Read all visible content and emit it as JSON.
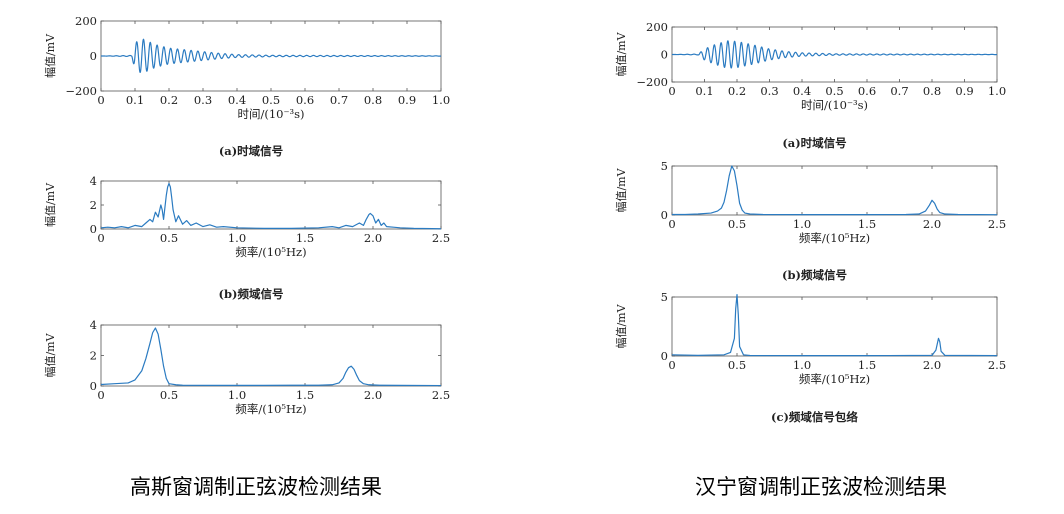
{
  "titles": {
    "left": "高斯窗调制正弦波检测结果",
    "right": "汉宁窗调制正弦波检测结果"
  },
  "chart_data": [
    {
      "id": "L-a",
      "type": "line",
      "column": "left",
      "caption": "(a)时域信号",
      "xlabel": "时间/(10⁻³s)",
      "ylabel": "幅值/mV",
      "xlim": [
        0,
        1.0
      ],
      "ylim": [
        -200,
        200
      ],
      "xticks": [
        0,
        0.1,
        0.2,
        0.3,
        0.4,
        0.5,
        0.6,
        0.7,
        0.8,
        0.9,
        1.0
      ],
      "xtick_labels": [
        "0",
        "0.1",
        "0.2",
        "0.3",
        "0.4",
        "0.5",
        "0.6",
        "0.7",
        "0.8",
        "0.9",
        "1.0"
      ],
      "yticks": [
        -200,
        0,
        200
      ],
      "ytick_labels": [
        "−200",
        "0",
        "200"
      ],
      "grid": false,
      "series": [
        {
          "color": "#2b7bc1",
          "envelope": [
            [
              0,
              0
            ],
            [
              0.09,
              3
            ],
            [
              0.1,
              75
            ],
            [
              0.12,
              100
            ],
            [
              0.16,
              65
            ],
            [
              0.2,
              45
            ],
            [
              0.25,
              35
            ],
            [
              0.3,
              25
            ],
            [
              0.35,
              15
            ],
            [
              0.4,
              8
            ],
            [
              0.5,
              4
            ],
            [
              0.7,
              3
            ],
            [
              1.0,
              1
            ]
          ],
          "freq_per_unit": 50
        }
      ]
    },
    {
      "id": "L-b",
      "type": "line",
      "column": "left",
      "caption": "(b)频域信号",
      "xlabel": "频率/(10⁵Hz)",
      "ylabel": "幅值/mV",
      "xlim": [
        0,
        2.5
      ],
      "ylim": [
        0,
        4
      ],
      "xticks": [
        0,
        0.5,
        1.0,
        1.5,
        2.0,
        2.5
      ],
      "xtick_labels": [
        "0",
        "0.5",
        "1.0",
        "1.5",
        "2.0",
        "2.5"
      ],
      "yticks": [
        0,
        2,
        4
      ],
      "ytick_labels": [
        "0",
        "2",
        "4"
      ],
      "grid": false,
      "series": [
        {
          "color": "#2b7bc1",
          "x": [
            0,
            0.05,
            0.1,
            0.15,
            0.2,
            0.25,
            0.3,
            0.33,
            0.36,
            0.38,
            0.4,
            0.42,
            0.44,
            0.45,
            0.46,
            0.47,
            0.48,
            0.49,
            0.5,
            0.51,
            0.52,
            0.53,
            0.55,
            0.57,
            0.6,
            0.63,
            0.66,
            0.7,
            0.75,
            0.8,
            0.85,
            0.9,
            1.0,
            1.2,
            1.4,
            1.6,
            1.7,
            1.75,
            1.8,
            1.85,
            1.9,
            1.93,
            1.95,
            1.97,
            1.98,
            2.0,
            2.02,
            2.04,
            2.06,
            2.08,
            2.1,
            2.15,
            2.2,
            2.3,
            2.5
          ],
          "y": [
            0.1,
            0.15,
            0.1,
            0.2,
            0.1,
            0.3,
            0.2,
            0.5,
            0.8,
            0.6,
            1.4,
            1.0,
            2.0,
            1.6,
            0.8,
            1.8,
            2.8,
            3.5,
            3.8,
            3.5,
            2.6,
            1.6,
            0.6,
            1.1,
            0.4,
            0.7,
            0.3,
            0.5,
            0.2,
            0.35,
            0.15,
            0.2,
            0.1,
            0.05,
            0.05,
            0.1,
            0.2,
            0.1,
            0.3,
            0.2,
            0.5,
            0.3,
            0.8,
            1.2,
            1.3,
            1.1,
            0.5,
            0.8,
            0.3,
            0.5,
            0.2,
            0.15,
            0.1,
            0.05,
            0.02
          ]
        }
      ]
    },
    {
      "id": "L-c",
      "type": "line",
      "column": "left",
      "caption": "",
      "xlabel": "频率/(10⁵Hz)",
      "ylabel": "幅值/mV",
      "xlim": [
        0,
        2.5
      ],
      "ylim": [
        0,
        4
      ],
      "xticks": [
        0,
        0.5,
        1.0,
        1.5,
        2.0,
        2.5
      ],
      "xtick_labels": [
        "0",
        "0.5",
        "1.0",
        "1.5",
        "2.0",
        "2.5"
      ],
      "yticks": [
        0,
        2,
        4
      ],
      "ytick_labels": [
        "0",
        "2",
        "4"
      ],
      "grid": false,
      "series": [
        {
          "color": "#2b7bc1",
          "x": [
            0,
            0.1,
            0.2,
            0.25,
            0.3,
            0.33,
            0.36,
            0.38,
            0.4,
            0.42,
            0.44,
            0.46,
            0.48,
            0.5,
            0.55,
            0.6,
            0.8,
            1.0,
            1.2,
            1.4,
            1.6,
            1.7,
            1.75,
            1.78,
            1.8,
            1.82,
            1.84,
            1.86,
            1.88,
            1.9,
            1.93,
            1.97,
            2.05,
            2.2,
            2.5
          ],
          "y": [
            0.1,
            0.15,
            0.2,
            0.4,
            1.0,
            1.8,
            2.8,
            3.5,
            3.8,
            3.4,
            2.4,
            1.3,
            0.5,
            0.15,
            0.08,
            0.05,
            0.04,
            0.04,
            0.04,
            0.05,
            0.05,
            0.08,
            0.2,
            0.5,
            0.9,
            1.2,
            1.3,
            1.1,
            0.7,
            0.35,
            0.15,
            0.08,
            0.05,
            0.04,
            0.03
          ]
        }
      ]
    },
    {
      "id": "R-a",
      "type": "line",
      "column": "right",
      "caption": "(a)时域信号",
      "xlabel": "时间/(10⁻³s)",
      "ylabel": "幅值/mV",
      "xlim": [
        0,
        1.0
      ],
      "ylim": [
        -200,
        200
      ],
      "xticks": [
        0,
        0.1,
        0.2,
        0.3,
        0.4,
        0.5,
        0.6,
        0.7,
        0.8,
        0.9,
        1.0
      ],
      "xtick_labels": [
        "0",
        "0.1",
        "0.2",
        "0.3",
        "0.4",
        "0.5",
        "0.6",
        "0.7",
        "0.8",
        "0.9",
        "1.0"
      ],
      "yticks": [
        -200,
        0,
        200
      ],
      "ytick_labels": [
        "−200",
        "0",
        "200"
      ],
      "grid": false,
      "series": [
        {
          "color": "#2b7bc1",
          "envelope": [
            [
              0,
              0
            ],
            [
              0.08,
              3
            ],
            [
              0.1,
              40
            ],
            [
              0.13,
              70
            ],
            [
              0.17,
              100
            ],
            [
              0.2,
              95
            ],
            [
              0.25,
              70
            ],
            [
              0.3,
              40
            ],
            [
              0.35,
              22
            ],
            [
              0.4,
              12
            ],
            [
              0.5,
              5
            ],
            [
              0.7,
              3
            ],
            [
              1.0,
              1
            ]
          ],
          "freq_per_unit": 48
        }
      ]
    },
    {
      "id": "R-b",
      "type": "line",
      "column": "right",
      "caption": "(b)频域信号",
      "xlabel": "频率/(10⁵Hz)",
      "ylabel": "幅值/mV",
      "xlim": [
        0,
        2.5
      ],
      "ylim": [
        0,
        5
      ],
      "xticks": [
        0,
        0.5,
        1.0,
        1.5,
        2.0,
        2.5
      ],
      "xtick_labels": [
        "0",
        "0.5",
        "1.0",
        "1.5",
        "2.0",
        "2.5"
      ],
      "yticks": [
        0,
        5
      ],
      "ytick_labels": [
        "0",
        "5"
      ],
      "grid": false,
      "series": [
        {
          "color": "#2b7bc1",
          "x": [
            0,
            0.1,
            0.2,
            0.3,
            0.35,
            0.38,
            0.4,
            0.42,
            0.44,
            0.46,
            0.48,
            0.5,
            0.52,
            0.54,
            0.56,
            0.6,
            0.7,
            1.0,
            1.5,
            1.8,
            1.9,
            1.95,
            1.98,
            2.0,
            2.02,
            2.04,
            2.06,
            2.1,
            2.2,
            2.5
          ],
          "y": [
            0.05,
            0.05,
            0.1,
            0.2,
            0.4,
            0.7,
            1.3,
            2.5,
            4.0,
            5.0,
            4.5,
            3.0,
            1.2,
            0.5,
            0.2,
            0.1,
            0.05,
            0.04,
            0.04,
            0.05,
            0.1,
            0.4,
            1.0,
            1.5,
            1.2,
            0.6,
            0.25,
            0.1,
            0.05,
            0.03
          ]
        }
      ]
    },
    {
      "id": "R-c",
      "type": "line",
      "column": "right",
      "caption": "(c)频域信号包络",
      "xlabel": "频率/(10⁵Hz)",
      "ylabel": "幅值/mV",
      "xlim": [
        0,
        2.5
      ],
      "ylim": [
        0,
        5
      ],
      "xticks": [
        0,
        0.5,
        1.0,
        1.5,
        2.0,
        2.5
      ],
      "xtick_labels": [
        "0",
        "0.5",
        "1.0",
        "1.5",
        "2.0",
        "2.5"
      ],
      "yticks": [
        0,
        5
      ],
      "ytick_labels": [
        "0",
        "5"
      ],
      "grid": false,
      "series": [
        {
          "color": "#2b7bc1",
          "x": [
            0,
            0.2,
            0.4,
            0.45,
            0.48,
            0.49,
            0.5,
            0.51,
            0.52,
            0.55,
            0.6,
            1.0,
            1.5,
            2.0,
            2.03,
            2.05,
            2.06,
            2.07,
            2.1,
            2.5
          ],
          "y": [
            0.1,
            0.05,
            0.1,
            0.3,
            1.5,
            4.0,
            5.2,
            3.5,
            0.8,
            0.1,
            0.04,
            0.03,
            0.03,
            0.05,
            0.5,
            1.5,
            1.2,
            0.4,
            0.05,
            0.03
          ]
        }
      ]
    }
  ]
}
